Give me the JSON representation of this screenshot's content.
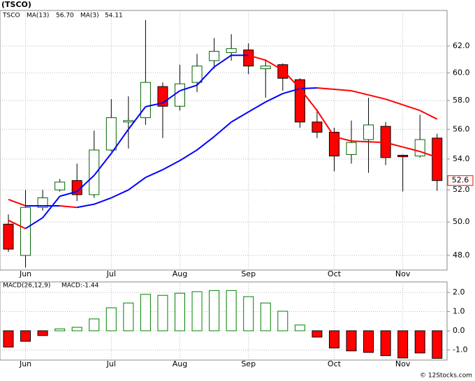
{
  "chart_data": [
    {
      "type": "candlestick",
      "title": "(TSCO)",
      "symbol": "TSCO",
      "categories": [
        null,
        "Jun",
        null,
        null,
        null,
        null,
        "Jul",
        null,
        null,
        null,
        "Aug",
        null,
        null,
        null,
        "Sep",
        null,
        null,
        null,
        null,
        "Oct",
        null,
        null,
        null,
        "Nov",
        null,
        null
      ],
      "open": [
        49.87,
        48.0,
        50.9,
        52.0,
        52.6,
        51.7,
        54.6,
        56.5,
        56.8,
        59.0,
        57.6,
        59.3,
        60.9,
        61.5,
        61.7,
        60.3,
        60.6,
        59.5,
        56.5,
        55.8,
        54.3,
        55.3,
        56.2,
        54.25,
        54.2,
        55.4
      ],
      "high": [
        50.47,
        52.0,
        52.0,
        52.7,
        53.7,
        55.9,
        58.1,
        58.3,
        64.0,
        59.3,
        60.6,
        61.4,
        62.6,
        62.9,
        62.2,
        61.0,
        60.7,
        59.6,
        57.4,
        56.1,
        56.6,
        58.2,
        56.5,
        54.3,
        57.0,
        55.7
      ],
      "low": [
        48.2,
        47.3,
        50.7,
        51.9,
        51.3,
        51.5,
        54.5,
        54.7,
        56.3,
        55.4,
        57.3,
        58.6,
        60.3,
        60.9,
        59.9,
        58.2,
        58.7,
        56.1,
        55.4,
        53.2,
        53.7,
        53.1,
        53.6,
        51.9,
        54.1,
        51.95
      ],
      "close": [
        48.37,
        50.9,
        51.5,
        52.5,
        51.7,
        54.6,
        56.8,
        56.6,
        59.3,
        57.6,
        59.2,
        60.5,
        61.6,
        61.8,
        60.5,
        60.5,
        59.6,
        56.5,
        55.8,
        54.2,
        55.1,
        56.3,
        54.1,
        54.15,
        55.3,
        52.6
      ],
      "up_color": "#ffffff",
      "up_edge": "#006400",
      "down_color": "#ff0000",
      "down_edge": "#000000",
      "series": [
        {
          "name": "MA(13)",
          "last_label": "56.70",
          "color": "#0000ff",
          "fall_color": "#ff0000",
          "values": [
            51.4,
            51.0,
            51.0,
            51.0,
            50.9,
            51.1,
            51.5,
            52.0,
            52.8,
            53.3,
            53.9,
            54.6,
            55.5,
            56.5,
            57.2,
            57.9,
            58.5,
            58.85,
            58.9,
            58.8,
            58.7,
            58.4,
            58.1,
            57.7,
            57.3,
            56.7
          ]
        },
        {
          "name": "MA(3)",
          "color": "#0000ff",
          "fall_color": "#ff0000",
          "values": [
            50.1,
            49.6,
            50.26,
            51.6,
            51.9,
            52.93,
            54.37,
            56.0,
            57.57,
            57.83,
            58.7,
            59.1,
            60.43,
            61.3,
            61.3,
            60.93,
            60.2,
            58.87,
            57.3,
            55.5,
            55.2,
            55.15,
            55.1,
            54.8,
            54.5,
            54.11
          ]
        }
      ],
      "log_scale": true,
      "ylim": [
        47.15,
        64.75
      ],
      "yticks": [
        {
          "value": 48,
          "label": "48.0"
        },
        {
          "value": 50,
          "label": "50.0"
        },
        {
          "value": 52,
          "label": "52.0"
        },
        {
          "value": 54,
          "label": "54.0"
        },
        {
          "value": 56,
          "label": "56.0"
        },
        {
          "value": 58,
          "label": "58.0"
        },
        {
          "value": 60,
          "label": "60.0"
        },
        {
          "value": 62,
          "label": "62.0"
        }
      ],
      "grid": true
    },
    {
      "type": "bar",
      "title": "MACD(26,12,9)",
      "label": "MACD:-1.44",
      "categories": [
        null,
        "Jun",
        null,
        null,
        null,
        null,
        "Jul",
        null,
        null,
        null,
        "Aug",
        null,
        null,
        null,
        "Sep",
        null,
        null,
        null,
        null,
        "Oct",
        null,
        null,
        null,
        "Nov",
        null,
        null
      ],
      "values": [
        -0.85,
        -0.55,
        -0.25,
        0.1,
        0.18,
        0.62,
        1.2,
        1.45,
        1.9,
        1.85,
        1.96,
        2.04,
        2.1,
        2.1,
        1.78,
        1.45,
        1.02,
        0.3,
        -0.33,
        -0.9,
        -1.05,
        -1.13,
        -1.3,
        -1.42,
        -1.16,
        -1.44
      ],
      "pos_color": "#ffffff",
      "pos_edge": "#008000",
      "neg_color": "#ff0000",
      "neg_edge": "#000000",
      "ylim": [
        -1.53,
        2.55
      ],
      "yticks": [
        {
          "value": -1,
          "label": "-1.0"
        },
        {
          "value": 0,
          "label": "0.0"
        },
        {
          "value": 1,
          "label": "1.0"
        },
        {
          "value": 2,
          "label": "2.0"
        }
      ],
      "grid": true
    }
  ],
  "footer": "© 12Stocks.com"
}
